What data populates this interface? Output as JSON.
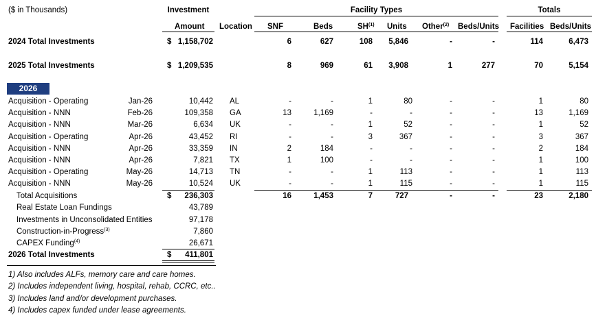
{
  "units_note": "($ in Thousands)",
  "headers": {
    "investment": "Investment",
    "facility_types": "Facility Types",
    "totals": "Totals",
    "amount": "Amount",
    "location": "Location",
    "snf": "SNF",
    "beds": "Beds",
    "sh": "SH",
    "sh_sup": "(1)",
    "units": "Units",
    "other": "Other",
    "other_sup": "(2)",
    "beds_units": "Beds/Units",
    "facilities": "Facilities",
    "totals_beds_units": "Beds/Units"
  },
  "summary_rows": [
    {
      "label": "2024 Total Investments",
      "dollar": "$",
      "amount": "1,158,702",
      "snf": "6",
      "beds": "627",
      "sh": "108",
      "units": "5,846",
      "other": "-",
      "other_bu": "-",
      "facilities": "114",
      "total_bu": "6,473"
    },
    {
      "label": "2025 Total Investments",
      "dollar": "$",
      "amount": "1,209,535",
      "snf": "8",
      "beds": "969",
      "sh": "61",
      "units": "3,908",
      "other": "1",
      "other_bu": "277",
      "facilities": "70",
      "total_bu": "5,154"
    }
  ],
  "year_badge": "2026",
  "rows": [
    {
      "label": "Acquisition - Operating",
      "date": "Jan-26",
      "amount": "10,442",
      "loc": "AL",
      "snf": "-",
      "beds": "-",
      "sh": "1",
      "units": "80",
      "other": "-",
      "other_bu": "-",
      "facilities": "1",
      "total_bu": "80"
    },
    {
      "label": "Acquisition - NNN",
      "date": "Feb-26",
      "amount": "109,358",
      "loc": "GA",
      "snf": "13",
      "beds": "1,169",
      "sh": "-",
      "units": "-",
      "other": "-",
      "other_bu": "-",
      "facilities": "13",
      "total_bu": "1,169"
    },
    {
      "label": "Acquisition - NNN",
      "date": "Mar-26",
      "amount": "6,634",
      "loc": "UK",
      "snf": "-",
      "beds": "-",
      "sh": "1",
      "units": "52",
      "other": "-",
      "other_bu": "-",
      "facilities": "1",
      "total_bu": "52"
    },
    {
      "label": "Acquisition - Operating",
      "date": "Apr-26",
      "amount": "43,452",
      "loc": "RI",
      "snf": "-",
      "beds": "-",
      "sh": "3",
      "units": "367",
      "other": "-",
      "other_bu": "-",
      "facilities": "3",
      "total_bu": "367"
    },
    {
      "label": "Acquisition - NNN",
      "date": "Apr-26",
      "amount": "33,359",
      "loc": "IN",
      "snf": "2",
      "beds": "184",
      "sh": "-",
      "units": "-",
      "other": "-",
      "other_bu": "-",
      "facilities": "2",
      "total_bu": "184"
    },
    {
      "label": "Acquisition - NNN",
      "date": "Apr-26",
      "amount": "7,821",
      "loc": "TX",
      "snf": "1",
      "beds": "100",
      "sh": "-",
      "units": "-",
      "other": "-",
      "other_bu": "-",
      "facilities": "1",
      "total_bu": "100"
    },
    {
      "label": "Acquisition - Operating",
      "date": "May-26",
      "amount": "14,713",
      "loc": "TN",
      "snf": "-",
      "beds": "-",
      "sh": "1",
      "units": "113",
      "other": "-",
      "other_bu": "-",
      "facilities": "1",
      "total_bu": "113"
    },
    {
      "label": "Acquisition - NNN",
      "date": "May-26",
      "amount": "10,524",
      "loc": "UK",
      "snf": "-",
      "beds": "-",
      "sh": "1",
      "units": "115",
      "other": "-",
      "other_bu": "-",
      "facilities": "1",
      "total_bu": "115"
    }
  ],
  "total_acq": {
    "label": "Total Acquisitions",
    "dollar": "$",
    "amount": "236,303",
    "snf": "16",
    "beds": "1,453",
    "sh": "7",
    "units": "727",
    "other": "-",
    "other_bu": "-",
    "facilities": "23",
    "total_bu": "2,180"
  },
  "other_items": [
    {
      "label": "Real Estate Loan Fundings",
      "sup": "",
      "amount": "43,789"
    },
    {
      "label": "Investments in Unconsolidated Entities",
      "sup": "",
      "amount": "97,178"
    },
    {
      "label": "Construction-in-Progress",
      "sup": "(3)",
      "amount": "7,860"
    },
    {
      "label": "CAPEX Funding",
      "sup": "(4)",
      "amount": "26,671"
    }
  ],
  "grand_total": {
    "label": "2026 Total Investments",
    "dollar": "$",
    "amount": "411,801"
  },
  "footnotes": [
    "1) Also includes ALFs, memory care and care homes.",
    "2) Includes independent living, hospital, rehab, CCRC, etc..",
    "3) Includes land and/or development purchases.",
    "4) Includes capex funded under lease agreements."
  ]
}
